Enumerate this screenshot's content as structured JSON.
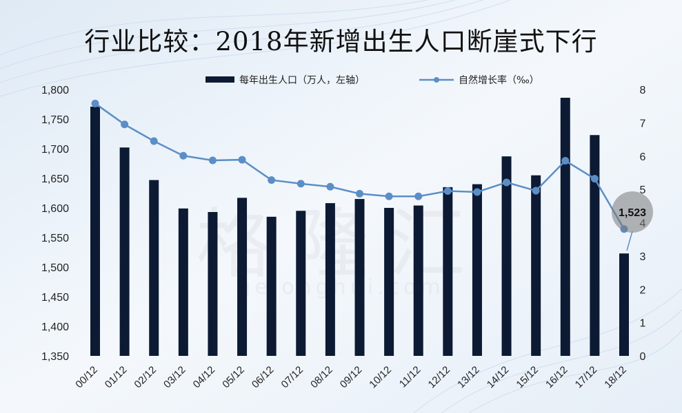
{
  "title": "行业比较：2018年新增出生人口断崖式下行",
  "watermark": {
    "text": "格隆汇",
    "url": "gelonghui.com"
  },
  "colors": {
    "bar": "#0c1a33",
    "line": "#5b8ec7",
    "marker": "#5b8ec7",
    "highlight": "#7a7a7a"
  },
  "chart_data": {
    "type": "bar",
    "categories": [
      "00/12",
      "01/12",
      "02/12",
      "03/12",
      "04/12",
      "05/12",
      "06/12",
      "07/12",
      "08/12",
      "09/12",
      "10/12",
      "11/12",
      "12/12",
      "13/12",
      "14/12",
      "15/12",
      "16/12",
      "17/12",
      "18/12"
    ],
    "series": [
      {
        "name": "每年出生人口（万人，左轴）",
        "type": "bar",
        "axis": "left",
        "values": [
          1771,
          1702,
          1647,
          1599,
          1593,
          1617,
          1585,
          1595,
          1608,
          1615,
          1600,
          1604,
          1635,
          1640,
          1687,
          1655,
          1786,
          1723,
          1523
        ]
      },
      {
        "name": "自然增长率（‰）",
        "type": "line",
        "axis": "right",
        "values": [
          7.58,
          6.95,
          6.45,
          6.01,
          5.87,
          5.89,
          5.28,
          5.17,
          5.08,
          4.87,
          4.79,
          4.79,
          4.95,
          4.92,
          5.21,
          4.96,
          5.86,
          5.32,
          3.81
        ]
      }
    ],
    "y_left": {
      "min": 1350,
      "max": 1800,
      "ticks": [
        "1,350",
        "1,400",
        "1,450",
        "1,500",
        "1,550",
        "1,600",
        "1,650",
        "1,700",
        "1,750",
        "1,800"
      ]
    },
    "y_right": {
      "min": 0,
      "max": 8,
      "ticks": [
        "0",
        "1",
        "2",
        "3",
        "4",
        "5",
        "6",
        "7",
        "8"
      ]
    },
    "annotation": {
      "text": "1,523",
      "category": "18/12"
    },
    "legend_position": "top-center",
    "grid": false
  }
}
